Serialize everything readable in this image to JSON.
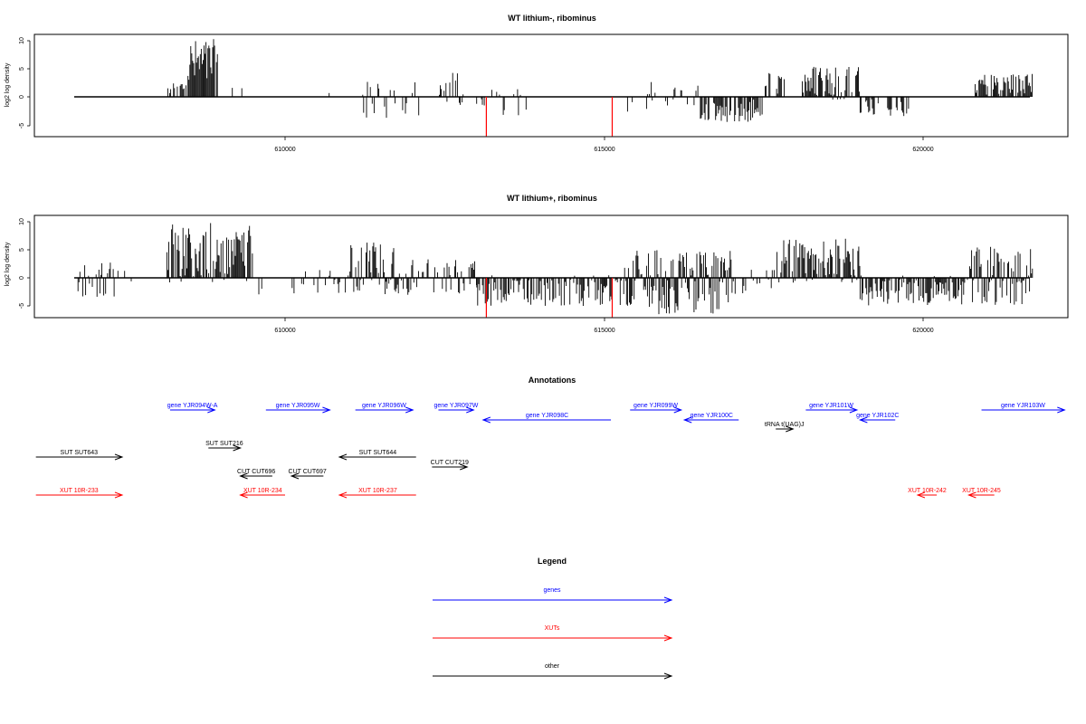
{
  "panels": [
    {
      "title": "WT lithium-, ribominus",
      "ylabel": "log2 log density",
      "yticks": [
        "-5",
        "0",
        "5",
        "10"
      ],
      "xticks": [
        "610000",
        "615000",
        "620000"
      ]
    },
    {
      "title": "WT lithium+, ribominus",
      "ylabel": "log2 log density",
      "yticks": [
        "-5",
        "0",
        "5",
        "10"
      ],
      "xticks": [
        "610000",
        "615000",
        "620000"
      ]
    }
  ],
  "annotations_title": "Annotations",
  "legend_title": "Legend",
  "colors": {
    "gene": "#0000ff",
    "xut": "#ff0000",
    "other": "#000000",
    "marker": "#ff0000",
    "axis": "#000000"
  },
  "chart_data": [
    {
      "type": "bar",
      "title": "WT lithium-, ribominus",
      "ylabel": "log2 log density",
      "xlim": [
        606100,
        622200
      ],
      "ylim": [
        -7,
        11
      ],
      "grid": false,
      "markers_x": [
        613150,
        615120
      ],
      "marker_depth": -7,
      "segments": [
        {
          "x0": 606700,
          "x1": 607100,
          "lo": -2.5,
          "hi": 2.5,
          "density": 0.08
        },
        {
          "x0": 608150,
          "x1": 608450,
          "lo": 0,
          "hi": 3,
          "density": 0.5
        },
        {
          "x0": 608450,
          "x1": 608950,
          "lo": 0,
          "hi": 10.3,
          "density": 1.0
        },
        {
          "x0": 609100,
          "x1": 609400,
          "lo": 0,
          "hi": 2.5,
          "density": 0.15
        },
        {
          "x0": 610600,
          "x1": 610700,
          "lo": 0,
          "hi": 1,
          "density": 0.1
        },
        {
          "x0": 611200,
          "x1": 612100,
          "lo": -4,
          "hi": 3,
          "density": 0.35
        },
        {
          "x0": 612400,
          "x1": 612800,
          "lo": -2,
          "hi": 4.3,
          "density": 0.55
        },
        {
          "x0": 612850,
          "x1": 613800,
          "lo": -3.5,
          "hi": 1.5,
          "density": 0.2
        },
        {
          "x0": 615300,
          "x1": 616500,
          "lo": -3,
          "hi": 3.5,
          "density": 0.3
        },
        {
          "x0": 616500,
          "x1": 617500,
          "lo": -4.5,
          "hi": 0,
          "density": 0.75
        },
        {
          "x0": 617500,
          "x1": 618200,
          "lo": 0,
          "hi": 4.5,
          "density": 0.4
        },
        {
          "x0": 618200,
          "x1": 619000,
          "lo": -1,
          "hi": 5.7,
          "density": 0.75
        },
        {
          "x0": 619000,
          "x1": 619800,
          "lo": -3.5,
          "hi": 0,
          "density": 0.55
        },
        {
          "x0": 620800,
          "x1": 621700,
          "lo": 0,
          "hi": 4.2,
          "density": 0.8
        }
      ]
    },
    {
      "type": "bar",
      "title": "WT lithium+, ribominus",
      "ylabel": "log2 log density",
      "xlim": [
        606100,
        622200
      ],
      "ylim": [
        -7,
        11
      ],
      "grid": false,
      "markers_x": [
        613150,
        615120
      ],
      "marker_depth": -7,
      "segments": [
        {
          "x0": 606700,
          "x1": 607600,
          "lo": -3.5,
          "hi": 3,
          "density": 0.45
        },
        {
          "x0": 608150,
          "x1": 609500,
          "lo": -1,
          "hi": 9.8,
          "density": 0.9
        },
        {
          "x0": 609500,
          "x1": 611000,
          "lo": -3,
          "hi": 1.5,
          "density": 0.25
        },
        {
          "x0": 611000,
          "x1": 612000,
          "lo": -3.5,
          "hi": 6.5,
          "density": 0.9
        },
        {
          "x0": 612000,
          "x1": 613000,
          "lo": -3,
          "hi": 3.5,
          "density": 0.55
        },
        {
          "x0": 613000,
          "x1": 615300,
          "lo": -5,
          "hi": 0.5,
          "density": 0.75
        },
        {
          "x0": 615300,
          "x1": 617000,
          "lo": -6.5,
          "hi": 5,
          "density": 1.0
        },
        {
          "x0": 617000,
          "x1": 617700,
          "lo": -3,
          "hi": 1.5,
          "density": 0.35
        },
        {
          "x0": 617700,
          "x1": 619000,
          "lo": -1,
          "hi": 7,
          "density": 0.95
        },
        {
          "x0": 619000,
          "x1": 620700,
          "lo": -5,
          "hi": 0.5,
          "density": 0.85
        },
        {
          "x0": 620700,
          "x1": 621700,
          "lo": -5,
          "hi": 6,
          "density": 0.9
        }
      ]
    }
  ],
  "annotations": [
    {
      "label": "gene YJR094W-A",
      "type": "gene",
      "x0": 608200,
      "x1": 608900,
      "row": 0
    },
    {
      "label": "gene YJR095W",
      "type": "gene",
      "x0": 609700,
      "x1": 610700,
      "row": 0
    },
    {
      "label": "gene YJR096W",
      "type": "gene",
      "x0": 611100,
      "x1": 612000,
      "row": 0
    },
    {
      "label": "gene YJR097W",
      "type": "gene",
      "x0": 612400,
      "x1": 612950,
      "row": 0
    },
    {
      "label": "gene YJR098C",
      "type": "gene",
      "x0": 615100,
      "x1": 613100,
      "row": 1
    },
    {
      "label": "gene YJR099W",
      "type": "gene",
      "x0": 615400,
      "x1": 616200,
      "row": 0
    },
    {
      "label": "gene YJR100C",
      "type": "gene",
      "x0": 617100,
      "x1": 616250,
      "row": 1
    },
    {
      "label": "tRNA t(UAG)J",
      "type": "other",
      "x0": 617680,
      "x1": 617950,
      "row": 2
    },
    {
      "label": "gene YJR101W",
      "type": "gene",
      "x0": 618150,
      "x1": 618950,
      "row": 0
    },
    {
      "label": "gene YJR102C",
      "type": "gene",
      "x0": 619550,
      "x1": 619000,
      "row": 1
    },
    {
      "label": "gene YJR103W",
      "type": "gene",
      "x0": 620900,
      "x1": 622200,
      "row": 0
    },
    {
      "label": "SUT SUT643",
      "type": "other",
      "x0": 606100,
      "x1": 607450,
      "row": 3
    },
    {
      "label": "SUT SUT216",
      "type": "other",
      "x0": 608800,
      "x1": 609300,
      "row": 3.5
    },
    {
      "label": "SUT SUT644",
      "type": "other",
      "x0": 612050,
      "x1": 610850,
      "row": 4
    },
    {
      "label": "CUT CUT696",
      "type": "other",
      "x0": 609800,
      "x1": 609300,
      "row": 5
    },
    {
      "label": "CUT CUT697",
      "type": "other",
      "x0": 610600,
      "x1": 610100,
      "row": 5
    },
    {
      "label": "CUT CUT219",
      "type": "other",
      "x0": 612300,
      "x1": 612850,
      "row": 4.5
    },
    {
      "label": "XUT 10R-233",
      "type": "xut",
      "x0": 606100,
      "x1": 607450,
      "row": 6
    },
    {
      "label": "XUT 10R-234",
      "type": "xut",
      "x0": 610000,
      "x1": 609300,
      "row": 6
    },
    {
      "label": "XUT 10R-237",
      "type": "xut",
      "x0": 612050,
      "x1": 610850,
      "row": 6
    },
    {
      "label": "XUT 10R-242",
      "type": "xut",
      "x0": 620200,
      "x1": 619900,
      "row": 6
    },
    {
      "label": "XUT 10R-245",
      "type": "xut",
      "x0": 621100,
      "x1": 620700,
      "row": 6
    }
  ],
  "legend": [
    {
      "label": "genes",
      "type": "gene"
    },
    {
      "label": "XUTs",
      "type": "xut"
    },
    {
      "label": "other",
      "type": "other"
    }
  ]
}
